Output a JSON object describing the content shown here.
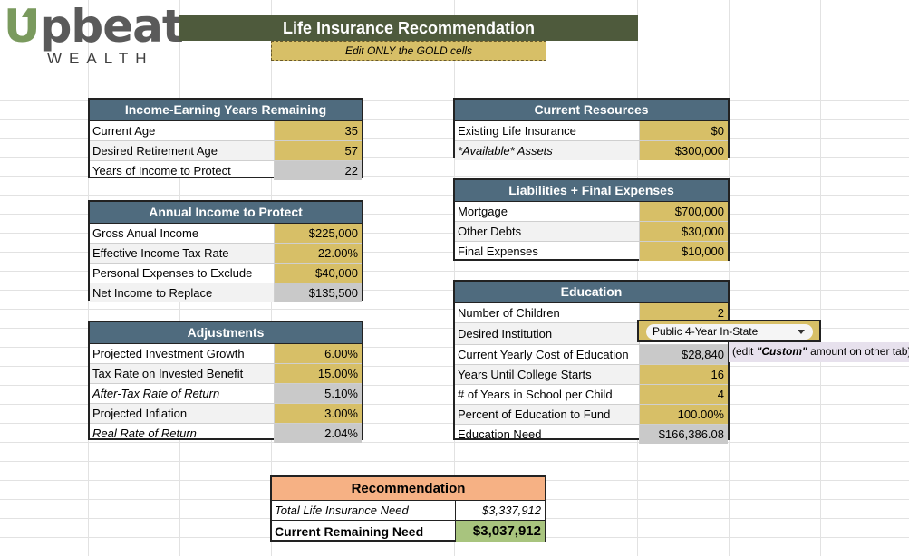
{
  "logo": {
    "word_rest": "pbeat",
    "word_u": "U",
    "sub": "WEALTH"
  },
  "title": "Life Insurance Recommendation",
  "gold_note": "Edit ONLY the GOLD cells",
  "income_years": {
    "header": "Income-Earning Years Remaining",
    "rows": [
      {
        "label": "Current Age",
        "value": "35"
      },
      {
        "label": "Desired Retirement Age",
        "value": "57"
      },
      {
        "label": "Years of Income to Protect",
        "value": "22"
      }
    ]
  },
  "annual_income": {
    "header": "Annual Income to Protect",
    "rows": [
      {
        "label": "Gross Anual Income",
        "value": "$225,000"
      },
      {
        "label": "Effective Income Tax Rate",
        "value": "22.00%"
      },
      {
        "label": "Personal Expenses to Exclude",
        "value": "$40,000"
      },
      {
        "label": "Net Income to Replace",
        "value": "$135,500"
      }
    ]
  },
  "adjustments": {
    "header": "Adjustments",
    "rows": [
      {
        "label": "Projected Investment Growth",
        "value": "6.00%"
      },
      {
        "label": "Tax Rate on Invested Benefit",
        "value": "15.00%"
      },
      {
        "label": "After-Tax Rate of Return",
        "value": "5.10%"
      },
      {
        "label": "Projected Inflation",
        "value": "3.00%"
      },
      {
        "label": "Real Rate of Return",
        "value": "2.04%"
      }
    ]
  },
  "current_resources": {
    "header": "Current Resources",
    "rows": [
      {
        "label": "Existing Life Insurance",
        "value": "$0"
      },
      {
        "label": "*Available* Assets",
        "value": "$300,000"
      }
    ]
  },
  "liabilities": {
    "header": "Liabilities + Final Expenses",
    "rows": [
      {
        "label": "Mortgage",
        "value": "$700,000"
      },
      {
        "label": "Other Debts",
        "value": "$30,000"
      },
      {
        "label": "Final Expenses",
        "value": "$10,000"
      }
    ]
  },
  "education": {
    "header": "Education",
    "rows": [
      {
        "label": "Number of Children",
        "value": "2"
      },
      {
        "label": "Desired Institution",
        "value": "Public 4-Year In-State"
      },
      {
        "label": "Current Yearly Cost of Education",
        "value": "$28,840"
      },
      {
        "label": "Years Until College Starts",
        "value": "16"
      },
      {
        "label": "# of Years in School per Child",
        "value": "4"
      },
      {
        "label": "Percent of Education to Fund",
        "value": "100.00%"
      },
      {
        "label": "Education Need",
        "value": "$166,386.08"
      }
    ],
    "note_before": "(edit ",
    "note_bold": "\"Custom\"",
    "note_after": " amount on other tab)"
  },
  "recommendation": {
    "header": "Recommendation",
    "total_label": "Total Life Insurance Need",
    "total_value": "$3,337,912",
    "remaining_label": "Current Remaining Need",
    "remaining_value": "$3,037,912"
  },
  "colors": {
    "header_blue": "#4f6b7e",
    "gold": "#d7bf67",
    "title_olive": "#4e5a3c",
    "rec_orange": "#f6b184",
    "rec_green": "#a8c47e"
  }
}
